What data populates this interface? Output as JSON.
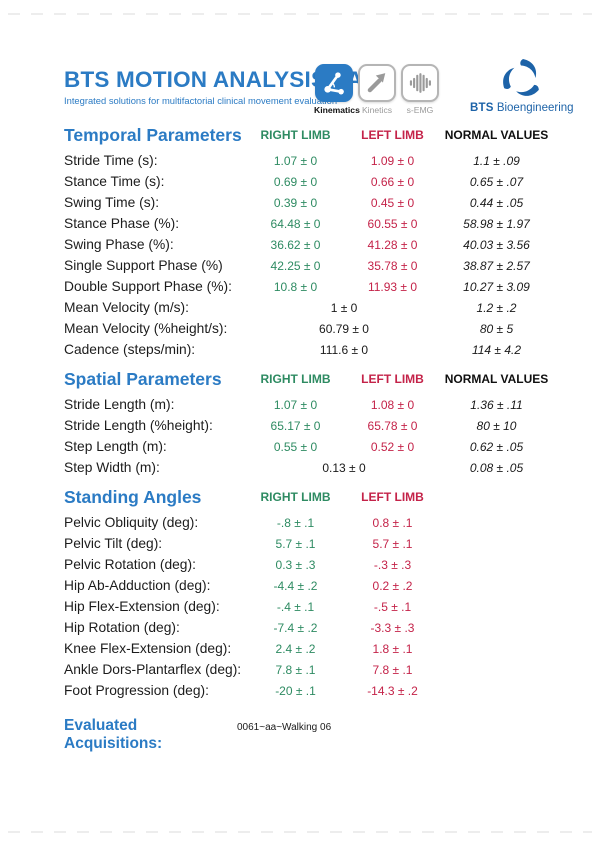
{
  "header": {
    "title": "BTS MOTION ANALYSIS LAB",
    "tagline": "Integrated solutions for multifactorial clinical movement evaluation",
    "modules": [
      {
        "id": "kinematics",
        "label": "Kinematics",
        "icon": "kinematics-icon",
        "active": true
      },
      {
        "id": "kinetics",
        "label": "Kinetics",
        "icon": "kinetics-icon",
        "active": false
      },
      {
        "id": "semg",
        "label": "s-EMG",
        "icon": "semg-icon",
        "active": false
      }
    ],
    "logo": {
      "bold": "BTS",
      "regular": "Bioengineering"
    }
  },
  "colors": {
    "accent_blue": "#2B7BC4",
    "right_limb_green": "#2E8B62",
    "left_limb_red": "#C42349",
    "logo_blue": "#1D63A8"
  },
  "sections": [
    {
      "title": "Temporal Parameters",
      "columns": [
        {
          "key": "right",
          "label": "RIGHT LIMB"
        },
        {
          "key": "left",
          "label": "LEFT LIMB"
        },
        {
          "key": "normal",
          "label": "NORMAL VALUES"
        }
      ],
      "has_normal": true,
      "rows": [
        {
          "label": "Stride Time (s):",
          "right": "1.07 ± 0",
          "left": "1.09 ± 0",
          "normal": "1.1 ± .09"
        },
        {
          "label": "Stance Time (s):",
          "right": "0.69 ± 0",
          "left": "0.66 ± 0",
          "normal": "0.65 ± .07"
        },
        {
          "label": "Swing Time (s):",
          "right": "0.39 ± 0",
          "left": "0.45 ± 0",
          "normal": "0.44 ± .05"
        },
        {
          "label": "Stance Phase (%):",
          "right": "64.48 ± 0",
          "left": "60.55 ± 0",
          "normal": "58.98 ± 1.97"
        },
        {
          "label": "Swing Phase (%):",
          "right": "36.62 ± 0",
          "left": "41.28 ± 0",
          "normal": "40.03 ± 3.56"
        },
        {
          "label": "Single Support Phase (%)",
          "right": "42.25 ± 0",
          "left": "35.78 ± 0",
          "normal": "38.87 ± 2.57"
        },
        {
          "label": "Double Support Phase (%):",
          "right": "10.8 ± 0",
          "left": "11.93 ± 0",
          "normal": "10.27 ± 3.09"
        },
        {
          "label": "Mean Velocity (m/s):",
          "center": "1 ± 0",
          "normal": "1.2 ± .2"
        },
        {
          "label": "Mean Velocity (%height/s):",
          "center": "60.79 ± 0",
          "normal": "80 ± 5"
        },
        {
          "label": "Cadence (steps/min):",
          "center": "111.6 ± 0",
          "normal": "114 ± 4.2"
        }
      ]
    },
    {
      "title": "Spatial Parameters",
      "columns": [
        {
          "key": "right",
          "label": "RIGHT LIMB"
        },
        {
          "key": "left",
          "label": "LEFT LIMB"
        },
        {
          "key": "normal",
          "label": "NORMAL VALUES"
        }
      ],
      "has_normal": true,
      "rows": [
        {
          "label": "Stride Length (m):",
          "right": "1.07 ± 0",
          "left": "1.08 ± 0",
          "normal": "1.36 ± .11"
        },
        {
          "label": "Stride Length (%height):",
          "right": "65.17 ± 0",
          "left": "65.78 ± 0",
          "normal": "80 ± 10"
        },
        {
          "label": "Step Length (m):",
          "right": "0.55 ± 0",
          "left": "0.52 ± 0",
          "normal": "0.62 ± .05"
        },
        {
          "label": "Step Width (m):",
          "center": "0.13 ± 0",
          "normal": "0.08 ± .05"
        }
      ]
    },
    {
      "title": "Standing Angles",
      "columns": [
        {
          "key": "right",
          "label": "RIGHT LIMB"
        },
        {
          "key": "left",
          "label": "LEFT LIMB"
        }
      ],
      "has_normal": false,
      "rows": [
        {
          "label": "Pelvic Obliquity (deg):",
          "right": "-.8 ± .1",
          "left": "0.8 ± .1"
        },
        {
          "label": "Pelvic Tilt (deg):",
          "right": "5.7 ± .1",
          "left": "5.7 ± .1"
        },
        {
          "label": "Pelvic Rotation (deg):",
          "right": "0.3 ± .3",
          "left": "-.3 ± .3"
        },
        {
          "label": "Hip Ab-Adduction (deg):",
          "right": "-4.4 ± .2",
          "left": "0.2 ± .2"
        },
        {
          "label": "Hip Flex-Extension (deg):",
          "right": "-.4 ± .1",
          "left": "-.5 ± .1"
        },
        {
          "label": "Hip Rotation (deg):",
          "right": "-7.4 ± .2",
          "left": "-3.3 ± .3"
        },
        {
          "label": "Knee Flex-Extension (deg):",
          "right": "2.4 ± .2",
          "left": "1.8 ± .1"
        },
        {
          "label": "Ankle Dors-Plantarflex (deg):",
          "right": "7.8 ± .1",
          "left": "7.8 ± .1"
        },
        {
          "label": "Foot Progression (deg):",
          "right": "-20 ± .1",
          "left": "-14.3 ± .2"
        }
      ]
    }
  ],
  "footer": {
    "label": "Evaluated Acquisitions:",
    "value": "0061~aa~Walking 06"
  }
}
